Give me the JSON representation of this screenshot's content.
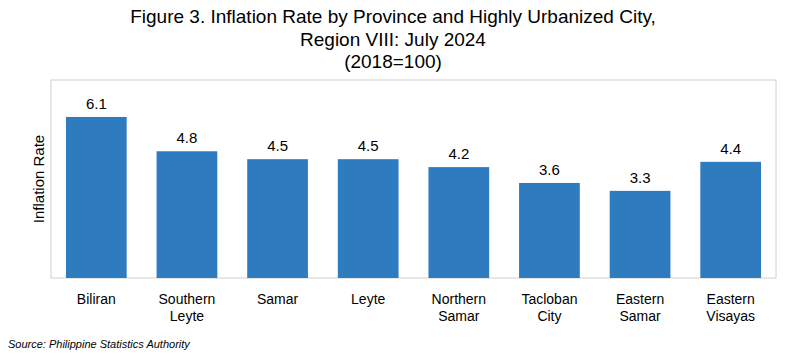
{
  "chart_data": {
    "type": "bar",
    "title": "Figure 3. Inflation Rate by Province and Highly Urbanized City,",
    "subtitle": [
      "Region VIII: July 2024",
      "(2018=100)"
    ],
    "y_label": "Inflation Rate",
    "source": "Source: Philippine Statistics Authority",
    "categories": [
      "Biliran",
      "Southern Leyte",
      "Samar",
      "Leyte",
      "Northern Samar",
      "Tacloban City",
      "Eastern Samar",
      "Eastern Visayas"
    ],
    "values": [
      6.1,
      4.8,
      4.5,
      4.5,
      4.2,
      3.6,
      3.3,
      4.4
    ],
    "color": "#2e7bbf",
    "ylim": [
      0,
      7.5
    ],
    "grid": false,
    "data_labels": true,
    "tick_labels": "x"
  }
}
